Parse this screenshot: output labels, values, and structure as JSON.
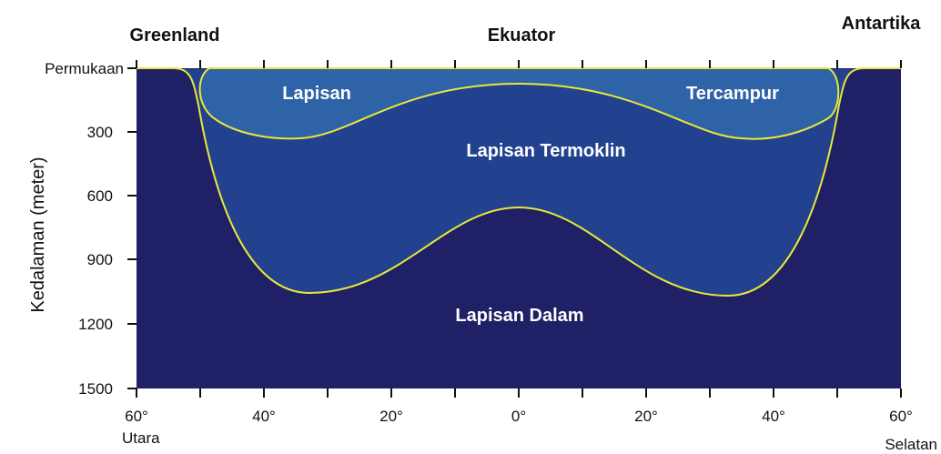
{
  "top_labels": {
    "greenland": "Greenland",
    "equator": "Ekuator",
    "antarctica": "Antartika"
  },
  "y_axis": {
    "title": "Kedalaman (meter)",
    "surface_label": "Permukaan",
    "ticks": [
      "300",
      "600",
      "900",
      "1200",
      "1500"
    ]
  },
  "x_axis": {
    "ticks": [
      "60°",
      "40°",
      "20°",
      "0°",
      "20°",
      "40°",
      "60°"
    ],
    "north_label": "Utara",
    "south_label": "Selatan"
  },
  "layers": {
    "mixed_left": "Lapisan",
    "mixed_right": "Tercampur",
    "thermocline": "Lapisan Termoklin",
    "deep": "Lapisan Dalam"
  },
  "colors": {
    "deep": "#1f2065",
    "thermocline": "#22418f",
    "mixed": "#2e63a8",
    "boundary": "#e8e83a"
  }
}
